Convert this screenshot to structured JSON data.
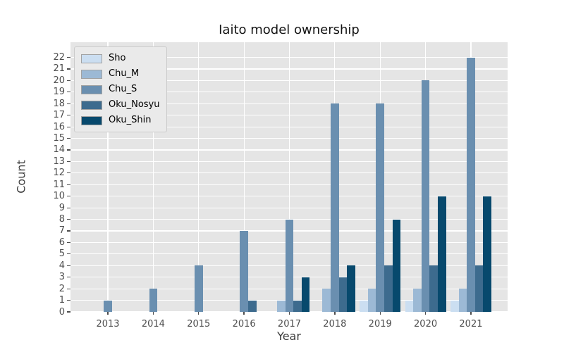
{
  "chart_data": {
    "type": "bar",
    "title": "Iaito model ownership",
    "xlabel": "Year",
    "ylabel": "Count",
    "categories": [
      "2013",
      "2014",
      "2015",
      "2016",
      "2017",
      "2018",
      "2019",
      "2020",
      "2021"
    ],
    "series": [
      {
        "name": "Sho",
        "color": "#cbdef1",
        "values": [
          0,
          0,
          0,
          0,
          0,
          0,
          1,
          1,
          1
        ]
      },
      {
        "name": "Chu_M",
        "color": "#9cb9d5",
        "values": [
          0,
          0,
          0,
          0,
          1,
          2,
          2,
          2,
          2
        ]
      },
      {
        "name": "Chu_S",
        "color": "#6a8fb0",
        "values": [
          1,
          2,
          4,
          7,
          8,
          18,
          18,
          20,
          22
        ]
      },
      {
        "name": "Oku_Nosyu",
        "color": "#3d6b8e",
        "values": [
          0,
          0,
          0,
          1,
          1,
          3,
          4,
          4,
          4
        ]
      },
      {
        "name": "Oku_Shin",
        "color": "#07496d",
        "values": [
          0,
          0,
          0,
          0,
          3,
          4,
          8,
          10,
          10
        ]
      }
    ],
    "ylim": [
      0,
      22
    ],
    "ytick_step": 1,
    "grid": true,
    "legend_position": "upper left",
    "plot_background": "#e5e5e5",
    "grid_color": "#ffffff",
    "tick_label_color": "#4d4d4d"
  }
}
